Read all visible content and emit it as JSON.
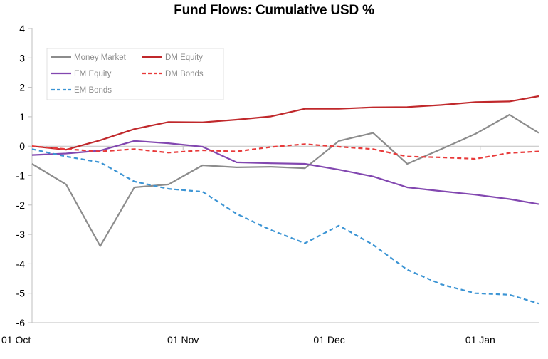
{
  "chart_data": {
    "type": "line",
    "title": "Fund Flows: Cumulative USD %",
    "xlabel": "",
    "ylabel": "",
    "ylim": [
      -6,
      4
    ],
    "yticks": [
      4,
      3,
      2,
      1,
      0,
      -1,
      -2,
      -3,
      -4,
      -5,
      -6
    ],
    "xticks": [
      {
        "label": "01 Oct",
        "x": 0
      },
      {
        "label": "01 Nov",
        "x": 31
      },
      {
        "label": "01 Dec",
        "x": 61
      },
      {
        "label": "01 Jan",
        "x": 92
      }
    ],
    "xlim": [
      0,
      104
    ],
    "x": [
      0,
      7,
      14,
      21,
      28,
      35,
      42,
      49,
      56,
      63,
      70,
      77,
      84,
      91,
      98,
      104
    ],
    "series": [
      {
        "name": "Money Market",
        "color": "#8c8c8c",
        "dash": false,
        "values": [
          -0.6,
          -1.3,
          -3.4,
          -1.4,
          -1.3,
          -0.65,
          -0.72,
          -0.7,
          -0.75,
          0.18,
          0.45,
          -0.6,
          -0.1,
          0.42,
          1.07,
          0.45
        ]
      },
      {
        "name": "DM Equity",
        "color": "#c0282b",
        "dash": false,
        "values": [
          0.0,
          -0.12,
          0.2,
          0.58,
          0.82,
          0.81,
          0.9,
          1.01,
          1.27,
          1.27,
          1.32,
          1.33,
          1.4,
          1.5,
          1.52,
          1.7
        ]
      },
      {
        "name": "EM Equity",
        "color": "#8247b0",
        "dash": false,
        "values": [
          -0.3,
          -0.25,
          -0.15,
          0.18,
          0.1,
          -0.02,
          -0.55,
          -0.58,
          -0.6,
          -0.8,
          -1.03,
          -1.4,
          -1.53,
          -1.65,
          -1.8,
          -1.97
        ]
      },
      {
        "name": "DM Bonds",
        "color": "#e83a3a",
        "dash": true,
        "values": [
          0.0,
          -0.1,
          -0.18,
          -0.1,
          -0.22,
          -0.14,
          -0.18,
          -0.03,
          0.07,
          -0.02,
          -0.1,
          -0.35,
          -0.38,
          -0.43,
          -0.23,
          -0.18
        ]
      },
      {
        "name": "EM Bonds",
        "color": "#3b94d4",
        "dash": true,
        "values": [
          -0.1,
          -0.35,
          -0.55,
          -1.2,
          -1.45,
          -1.55,
          -2.3,
          -2.85,
          -3.3,
          -2.7,
          -3.35,
          -4.2,
          -4.7,
          -5.0,
          -5.05,
          -5.35
        ]
      }
    ],
    "legend": {
      "position": "top-left",
      "entries": [
        "Money Market",
        "DM Equity",
        "EM Equity",
        "DM Bonds",
        "EM Bonds"
      ]
    },
    "grid": false,
    "zero_line": true
  }
}
